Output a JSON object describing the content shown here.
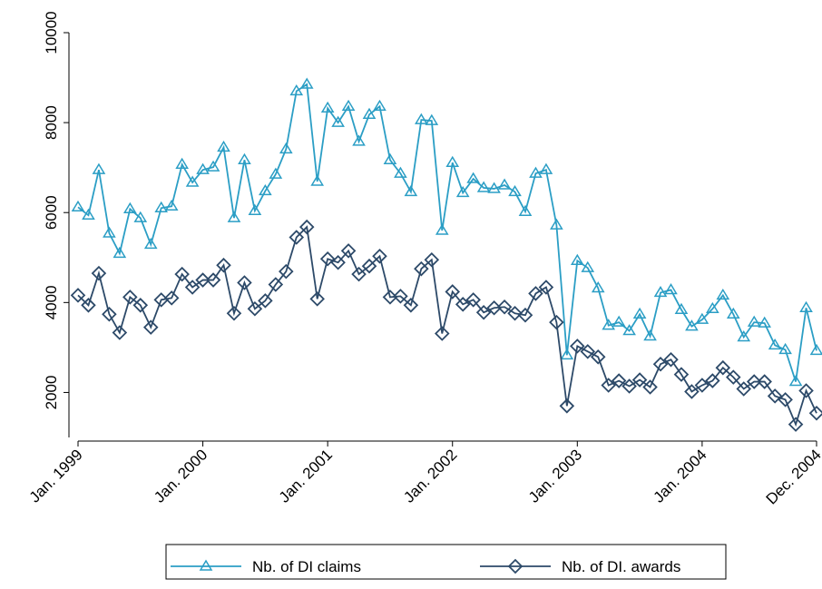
{
  "chart_data": {
    "type": "line",
    "categories": [
      "Jan. 1999",
      null,
      null,
      null,
      null,
      null,
      null,
      null,
      null,
      null,
      null,
      null,
      "Jan. 2000",
      null,
      null,
      null,
      null,
      null,
      null,
      null,
      null,
      null,
      null,
      null,
      "Jan. 2001",
      null,
      null,
      null,
      null,
      null,
      null,
      null,
      null,
      null,
      null,
      null,
      "Jan. 2002",
      null,
      null,
      null,
      null,
      null,
      null,
      null,
      null,
      null,
      null,
      null,
      "Jan. 2003",
      null,
      null,
      null,
      null,
      null,
      null,
      null,
      null,
      null,
      null,
      null,
      "Jan. 2004",
      null,
      null,
      null,
      null,
      null,
      null,
      null,
      null,
      null,
      null,
      "Dec. 2004"
    ],
    "series": [
      {
        "name": "Nb. of DI claims",
        "color": "#2b9ec5",
        "marker": "triangle",
        "values": [
          6120,
          5940,
          6950,
          5540,
          5090,
          6080,
          5880,
          5290,
          6100,
          6140,
          7070,
          6670,
          6950,
          7010,
          7450,
          5880,
          7170,
          6040,
          6480,
          6850,
          7410,
          8700,
          8850,
          6690,
          8320,
          8000,
          8360,
          7580,
          8180,
          8360,
          7170,
          6870,
          6460,
          8060,
          8040,
          5600,
          7110,
          6440,
          6750,
          6550,
          6530,
          6610,
          6460,
          6020,
          6870,
          6950,
          5720,
          2830,
          4930,
          4770,
          4320,
          3490,
          3560,
          3370,
          3740,
          3250,
          4220,
          4280,
          3840,
          3470,
          3620,
          3860,
          4160,
          3740,
          3230,
          3560,
          3540,
          3050,
          2950,
          2240,
          3880,
          2930
        ]
      },
      {
        "name": "Nb. of DI. awards",
        "color": "#2d4a69",
        "marker": "diamond",
        "values": [
          4160,
          3940,
          4650,
          3740,
          3330,
          4120,
          3940,
          3450,
          4060,
          4100,
          4630,
          4340,
          4500,
          4500,
          4830,
          3760,
          4440,
          3860,
          4040,
          4400,
          4690,
          5450,
          5680,
          4080,
          4970,
          4890,
          5150,
          4630,
          4810,
          5030,
          4120,
          4140,
          3940,
          4750,
          4950,
          3310,
          4240,
          3960,
          4060,
          3780,
          3880,
          3900,
          3760,
          3720,
          4200,
          4340,
          3560,
          1700,
          3030,
          2910,
          2790,
          2160,
          2260,
          2140,
          2280,
          2120,
          2630,
          2730,
          2400,
          2020,
          2160,
          2260,
          2550,
          2340,
          2080,
          2240,
          2240,
          1920,
          1840,
          1290,
          2040,
          1540
        ]
      }
    ],
    "ylim": [
      1000,
      10000
    ],
    "yticks": [
      2000,
      4000,
      6000,
      8000,
      10000
    ],
    "grid": false
  }
}
